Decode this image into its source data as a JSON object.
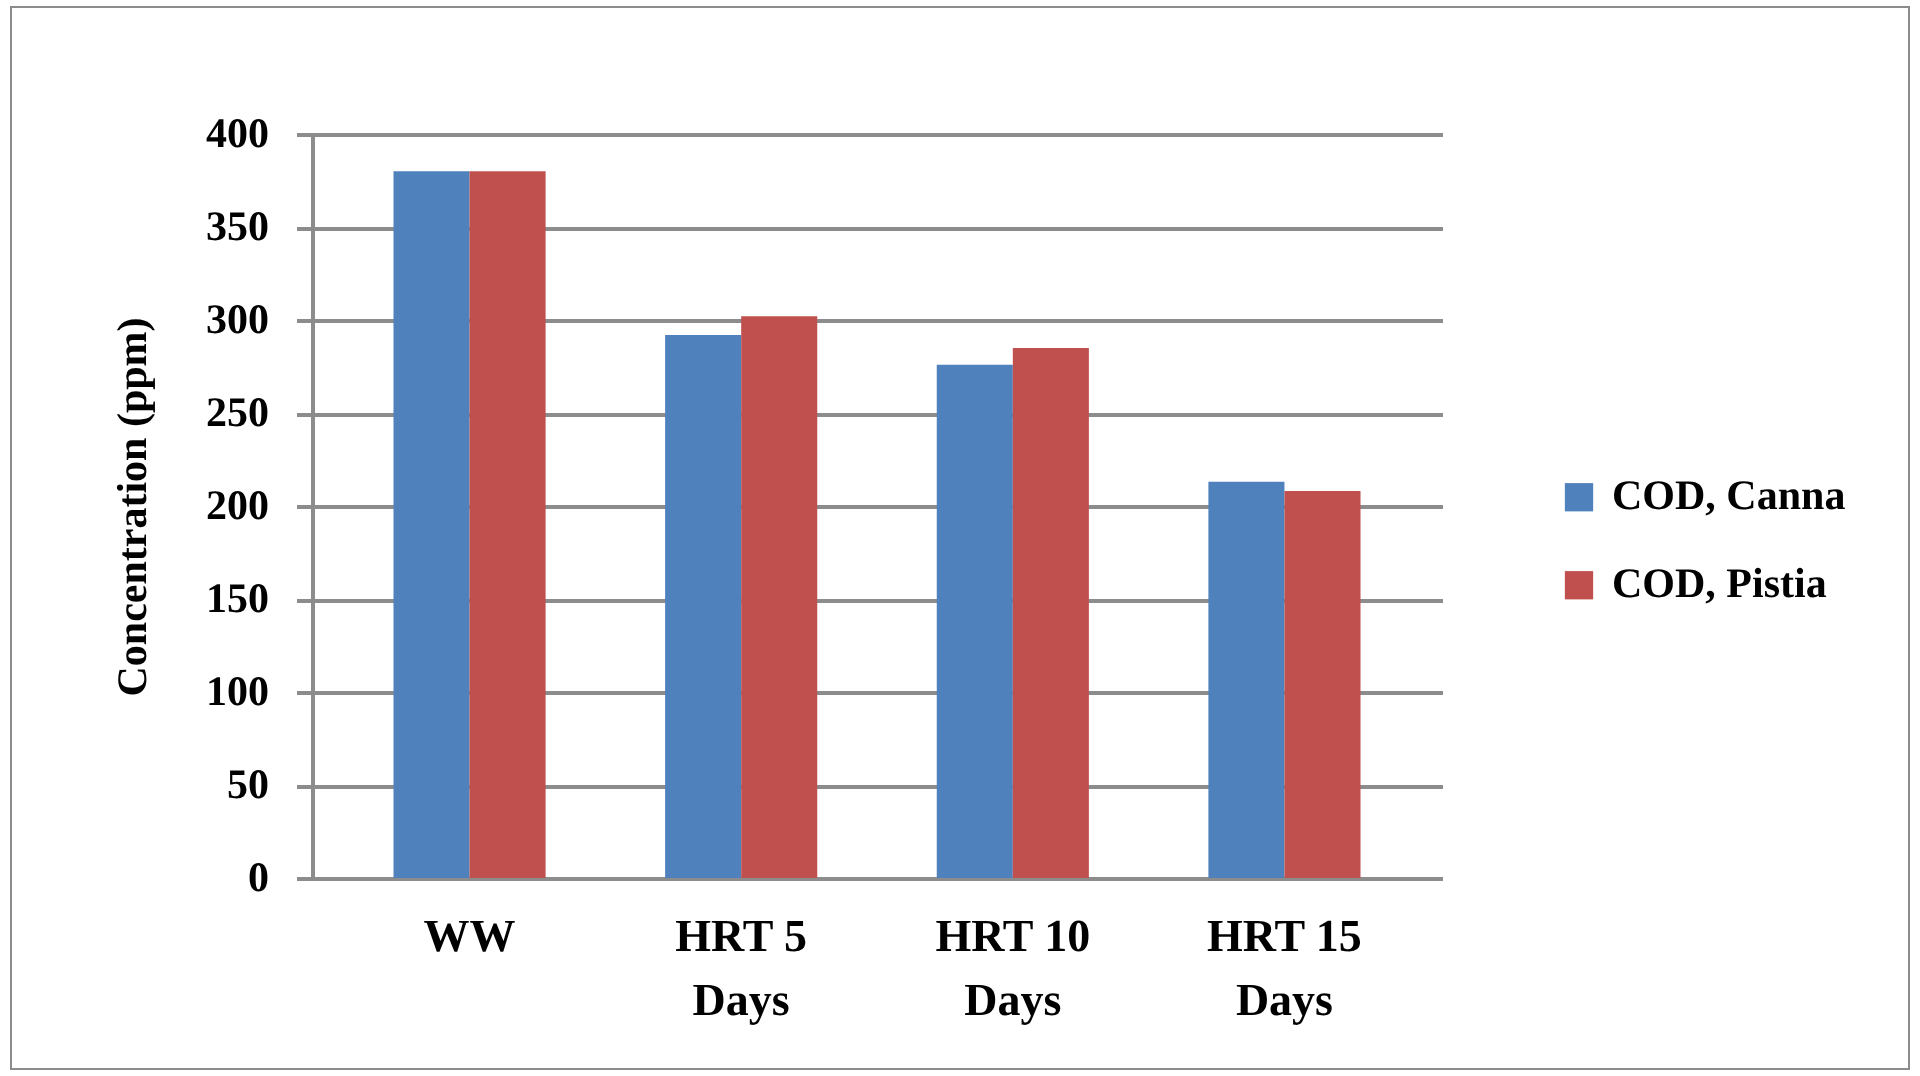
{
  "chart_data": {
    "type": "bar",
    "ylabel": "Concentration (ppm)",
    "categories": [
      "WW",
      "HRT 5 Days",
      "HRT 10 Days",
      "HRT 15 Days"
    ],
    "series": [
      {
        "name": "COD, Canna",
        "color": "#4f81bd",
        "values": [
          380,
          292,
          276,
          213
        ]
      },
      {
        "name": "COD, Pistia",
        "color": "#c0504d",
        "values": [
          380,
          302,
          285,
          208
        ]
      }
    ],
    "ylim": [
      0,
      400
    ],
    "yticks": [
      0,
      50,
      100,
      150,
      200,
      250,
      300,
      350,
      400
    ],
    "grid": "y",
    "legend": "right"
  }
}
